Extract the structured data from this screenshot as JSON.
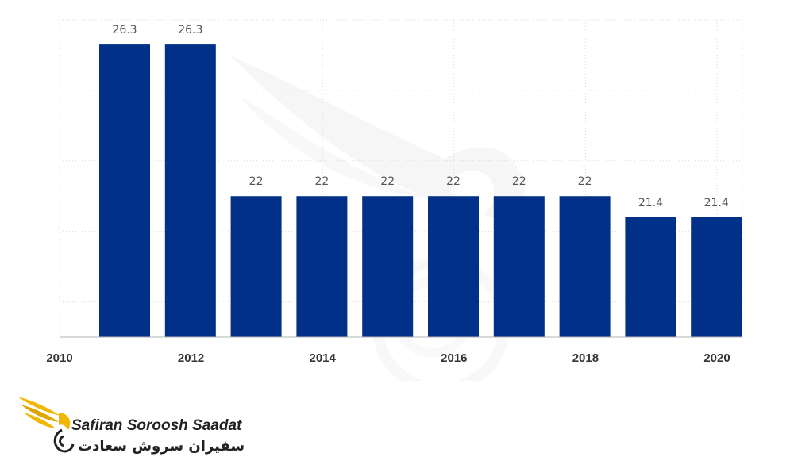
{
  "chart_data": {
    "type": "bar",
    "x": [
      2011,
      2012,
      2013,
      2014,
      2015,
      2016,
      2017,
      2018,
      2019,
      2020
    ],
    "values": [
      26.3,
      26.3,
      22,
      22,
      22,
      22,
      22,
      22,
      21.4,
      21.4
    ],
    "data_labels": [
      "26.3",
      "26.3",
      "22",
      "22",
      "22",
      "22",
      "22",
      "22",
      "21.4",
      "21.4"
    ],
    "x_ticks": [
      "2010",
      "2012",
      "2014",
      "2016",
      "2018",
      "2020"
    ],
    "title": "",
    "xlabel": "",
    "ylabel": "",
    "ylim": [
      18,
      27
    ],
    "grid": true,
    "bar_color": "#003087"
  },
  "logo": {
    "text_en": "Safiran Soroosh Saadat",
    "text_fa": "سفیران سروش سعادت",
    "accent_color": "#f2b705"
  }
}
